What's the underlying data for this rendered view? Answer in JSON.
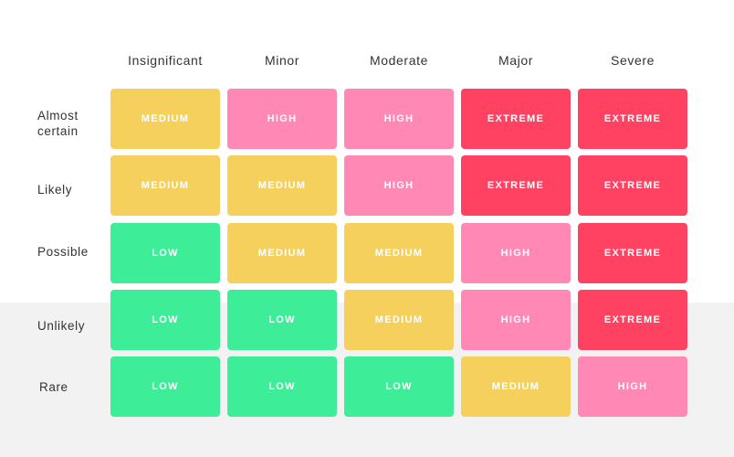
{
  "columns": [
    "Insignificant",
    "Minor",
    "Moderate",
    "Major",
    "Severe"
  ],
  "rows": [
    {
      "label": "Almost certain",
      "cells": [
        "MEDIUM",
        "HIGH",
        "HIGH",
        "EXTREME",
        "EXTREME"
      ]
    },
    {
      "label": "Likely",
      "cells": [
        "MEDIUM",
        "MEDIUM",
        "HIGH",
        "EXTREME",
        "EXTREME"
      ]
    },
    {
      "label": "Possible",
      "cells": [
        "LOW",
        "MEDIUM",
        "MEDIUM",
        "HIGH",
        "EXTREME"
      ]
    },
    {
      "label": "Unlikely",
      "cells": [
        "LOW",
        "LOW",
        "MEDIUM",
        "HIGH",
        "EXTREME"
      ]
    },
    {
      "label": "Rare",
      "cells": [
        "LOW",
        "LOW",
        "LOW",
        "MEDIUM",
        "HIGH"
      ]
    }
  ],
  "colors": {
    "LOW": "#3ded97",
    "MEDIUM": "#f6d05d",
    "HIGH": "#ff88b4",
    "EXTREME": "#ff4262"
  }
}
